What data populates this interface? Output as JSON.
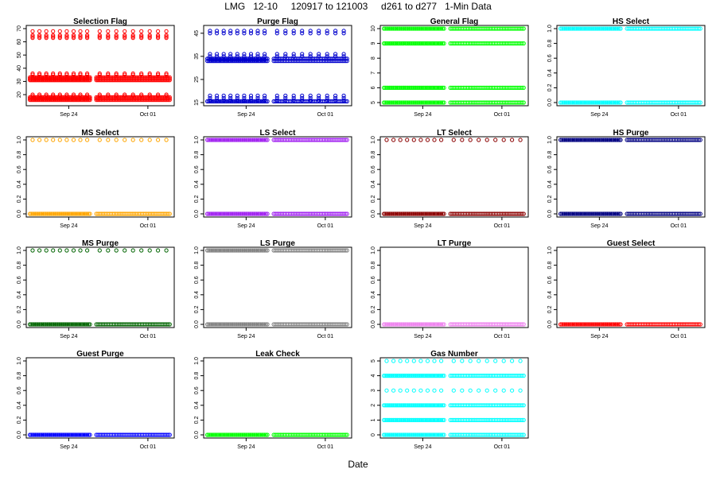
{
  "figure": {
    "title": "LMG   12-10     120917 to 121003     d261 to d277   1-Min Data",
    "xlabel": "Date"
  },
  "chart_data": [
    {
      "type": "scatter",
      "title": "Selection Flag",
      "color": "#ff0000",
      "ylim": [
        14,
        70
      ],
      "yticks": [
        20,
        30,
        40,
        50,
        60,
        70
      ],
      "levels": [
        16,
        17,
        18,
        19,
        20,
        31,
        32,
        33,
        35,
        36,
        63,
        64,
        65,
        68
      ],
      "sparse_levels": [
        19,
        20,
        35,
        36,
        63,
        64,
        65,
        68
      ],
      "xticks": [
        "Sep 24",
        "Oct 01"
      ]
    },
    {
      "type": "scatter",
      "title": "Purge Flag",
      "color": "#0000cd",
      "ylim": [
        15,
        47
      ],
      "yticks": [
        15,
        25,
        35,
        45
      ],
      "levels": [
        15.5,
        16,
        17,
        18,
        33,
        34,
        35,
        36,
        45,
        46
      ],
      "sparse_levels": [
        16,
        17,
        18,
        35,
        36,
        45,
        46
      ],
      "xticks": [
        "Sep 24",
        "Oct 01"
      ]
    },
    {
      "type": "scatter",
      "title": "General Flag",
      "color": "#00ff00",
      "ylim": [
        5,
        10
      ],
      "yticks": [
        5,
        6,
        7,
        8,
        9,
        10
      ],
      "levels": [
        5,
        6,
        9,
        10
      ],
      "sparse_levels": [],
      "xticks": [
        "Sep 24",
        "Oct 01"
      ]
    },
    {
      "type": "scatter",
      "title": "HS Select",
      "color": "#00ffff",
      "ylim": [
        0,
        1
      ],
      "yticks": [
        0.0,
        0.2,
        0.4,
        0.6,
        0.8,
        1.0
      ],
      "levels": [
        0,
        1
      ],
      "sparse_levels": [],
      "xticks": [
        "Sep 24",
        "Oct 01"
      ]
    },
    {
      "type": "scatter",
      "title": "MS Select",
      "color": "#ffa500",
      "ylim": [
        0,
        1
      ],
      "yticks": [
        0.0,
        0.2,
        0.4,
        0.6,
        0.8,
        1.0
      ],
      "levels": [
        0,
        1
      ],
      "sparse_levels": [
        1
      ],
      "xticks": [
        "Sep 24",
        "Oct 01"
      ]
    },
    {
      "type": "scatter",
      "title": "LS Select",
      "color": "#a020f0",
      "ylim": [
        0,
        1
      ],
      "yticks": [
        0.0,
        0.2,
        0.4,
        0.6,
        0.8,
        1.0
      ],
      "levels": [
        0,
        1
      ],
      "sparse_levels": [],
      "xticks": [
        "Sep 24",
        "Oct 01"
      ]
    },
    {
      "type": "scatter",
      "title": "LT Select",
      "color": "#8b0000",
      "ylim": [
        0,
        1
      ],
      "yticks": [
        0.0,
        0.2,
        0.4,
        0.6,
        0.8,
        1.0
      ],
      "levels": [
        0,
        1
      ],
      "sparse_levels": [
        1
      ],
      "xticks": [
        "Sep 24",
        "Oct 01"
      ]
    },
    {
      "type": "scatter",
      "title": "HS Purge",
      "color": "#000080",
      "ylim": [
        0,
        1
      ],
      "yticks": [
        0.0,
        0.2,
        0.4,
        0.6,
        0.8,
        1.0
      ],
      "levels": [
        0,
        1
      ],
      "sparse_levels": [],
      "xticks": [
        "Sep 24",
        "Oct 01"
      ]
    },
    {
      "type": "scatter",
      "title": "MS Purge",
      "color": "#006400",
      "ylim": [
        0,
        1
      ],
      "yticks": [
        0.0,
        0.2,
        0.4,
        0.6,
        0.8,
        1.0
      ],
      "levels": [
        0,
        1
      ],
      "sparse_levels": [
        1
      ],
      "xticks": [
        "Sep 24",
        "Oct 01"
      ]
    },
    {
      "type": "scatter",
      "title": "LS Purge",
      "color": "#808080",
      "ylim": [
        0,
        1
      ],
      "yticks": [
        0.0,
        0.2,
        0.4,
        0.6,
        0.8,
        1.0
      ],
      "levels": [
        0,
        1
      ],
      "sparse_levels": [],
      "xticks": [
        "Sep 24",
        "Oct 01"
      ]
    },
    {
      "type": "scatter",
      "title": "LT Purge",
      "color": "#ee82ee",
      "ylim": [
        0,
        1
      ],
      "yticks": [
        0.0,
        0.2,
        0.4,
        0.6,
        0.8,
        1.0
      ],
      "levels": [
        0
      ],
      "sparse_levels": [],
      "xticks": [
        "Sep 24",
        "Oct 01"
      ]
    },
    {
      "type": "scatter",
      "title": "Guest Select",
      "color": "#ff0000",
      "ylim": [
        0,
        1
      ],
      "yticks": [
        0.0,
        0.2,
        0.4,
        0.6,
        0.8,
        1.0
      ],
      "levels": [
        0
      ],
      "sparse_levels": [],
      "xticks": [
        "Sep 24",
        "Oct 01"
      ]
    },
    {
      "type": "scatter",
      "title": "Guest Purge",
      "color": "#0000ff",
      "ylim": [
        0,
        1
      ],
      "yticks": [
        0.0,
        0.2,
        0.4,
        0.6,
        0.8,
        1.0
      ],
      "levels": [
        0
      ],
      "sparse_levels": [],
      "xticks": [
        "Sep 24",
        "Oct 01"
      ]
    },
    {
      "type": "scatter",
      "title": "Leak Check",
      "color": "#00ff00",
      "ylim": [
        0,
        1
      ],
      "yticks": [
        0.0,
        0.2,
        0.4,
        0.6,
        0.8,
        1.0
      ],
      "levels": [
        0
      ],
      "sparse_levels": [],
      "xticks": [
        "Sep 24",
        "Oct 01"
      ]
    },
    {
      "type": "scatter",
      "title": "Gas Number",
      "color": "#00ffff",
      "ylim": [
        0,
        5
      ],
      "yticks": [
        0,
        1,
        2,
        3,
        4,
        5
      ],
      "levels": [
        0,
        1,
        2,
        3,
        4,
        5
      ],
      "sparse_levels": [
        3,
        5
      ],
      "xticks": [
        "Sep 24",
        "Oct 01"
      ]
    }
  ]
}
